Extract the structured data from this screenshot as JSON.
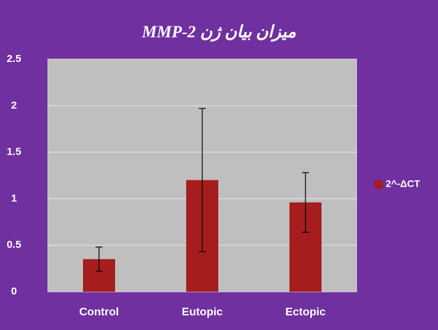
{
  "chart_data": {
    "type": "bar",
    "title": "میزان بیان ژن MMP-2",
    "categories": [
      "Control",
      "Eutopic",
      "Ectopic"
    ],
    "series": [
      {
        "name": "2^-ΔCT",
        "color": "#a51d1d",
        "values": [
          0.35,
          1.2,
          0.96
        ],
        "errors": [
          0.13,
          0.77,
          0.32
        ]
      }
    ],
    "ylim": [
      0,
      2.5
    ],
    "yticks": [
      0,
      0.5,
      1,
      1.5,
      2,
      2.5
    ],
    "grid": true,
    "legend": "right"
  }
}
